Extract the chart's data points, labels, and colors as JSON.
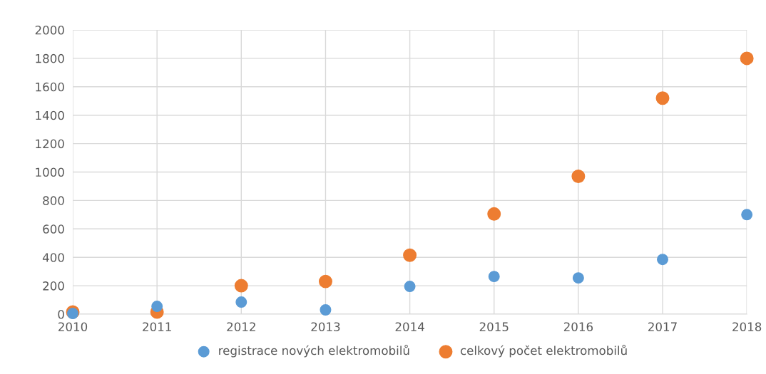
{
  "chart_data": {
    "type": "scatter",
    "x": [
      2010,
      2011,
      2012,
      2013,
      2014,
      2015,
      2016,
      2017,
      2018
    ],
    "series": [
      {
        "name": "registrace nových elektromobilů",
        "color": "#5b9bd5",
        "values": [
          5,
          55,
          85,
          30,
          195,
          265,
          255,
          385,
          700
        ]
      },
      {
        "name": "celkový počet elektromobilů",
        "color": "#ed7d31",
        "values": [
          15,
          15,
          200,
          230,
          415,
          705,
          970,
          1520,
          1800
        ]
      }
    ],
    "xlim": [
      2010,
      2018
    ],
    "xticks": [
      2010,
      2011,
      2012,
      2013,
      2014,
      2015,
      2016,
      2017,
      2018
    ],
    "ylim": [
      0,
      2000
    ],
    "yticks": [
      0,
      200,
      400,
      600,
      800,
      1000,
      1200,
      1400,
      1600,
      1800,
      2000
    ],
    "grid": true,
    "legend": "bottom",
    "marker": "circle"
  }
}
